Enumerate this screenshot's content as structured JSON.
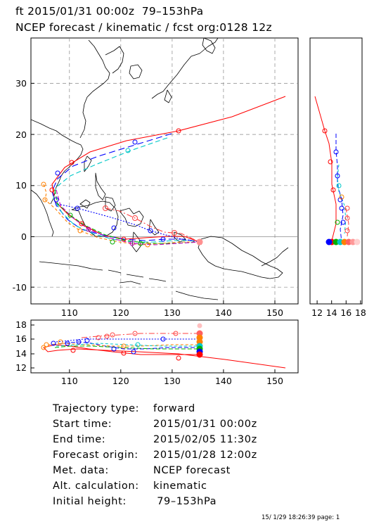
{
  "header": {
    "line1": "ft 2015/01/31 00:00z  79–153hPa",
    "line2": "NCEP forecast / kinematic / fcst org:0128 12z"
  },
  "map": {
    "lon_ticks": [
      "110",
      "120",
      "130",
      "140",
      "150"
    ],
    "lat_ticks": [
      "30",
      "20",
      "10",
      "0",
      "-10"
    ],
    "lon_range": [
      103,
      155
    ],
    "lat_range": [
      -13,
      39
    ]
  },
  "side_panel": {
    "x_ticks": [
      "12",
      "14",
      "16",
      "18"
    ],
    "x_range": [
      11.5,
      18.5
    ]
  },
  "bottom_panel": {
    "y_ticks": [
      "18",
      "16",
      "14",
      "12"
    ],
    "x_ticks": [
      "110",
      "120",
      "130",
      "140",
      "150"
    ],
    "y_range": [
      11.5,
      18.5
    ]
  },
  "trajectory_colors": [
    "#ff0000",
    "#ff6060",
    "#0000ff",
    "#00c8c8",
    "#ff8000",
    "#00b000",
    "#c000c0",
    "#3030ff"
  ],
  "info": {
    "rows": [
      {
        "label": "Trajectory type:",
        "value": "forward"
      },
      {
        "label": "Start time:",
        "value": "2015/01/31 00:00z"
      },
      {
        "label": "End time:",
        "value": "2015/02/05 11:30z"
      },
      {
        "label": "Forecast origin:",
        "value": "2015/01/28 12:00z"
      },
      {
        "label": "Met. data:",
        "value": "NCEP forecast"
      },
      {
        "label": "Alt. calculation:",
        "value": "kinematic"
      },
      {
        "label": "Initial height:",
        "value": " 79–153hPa"
      }
    ]
  },
  "footer": "15/ 1/29 18:26:39 page: 1"
}
